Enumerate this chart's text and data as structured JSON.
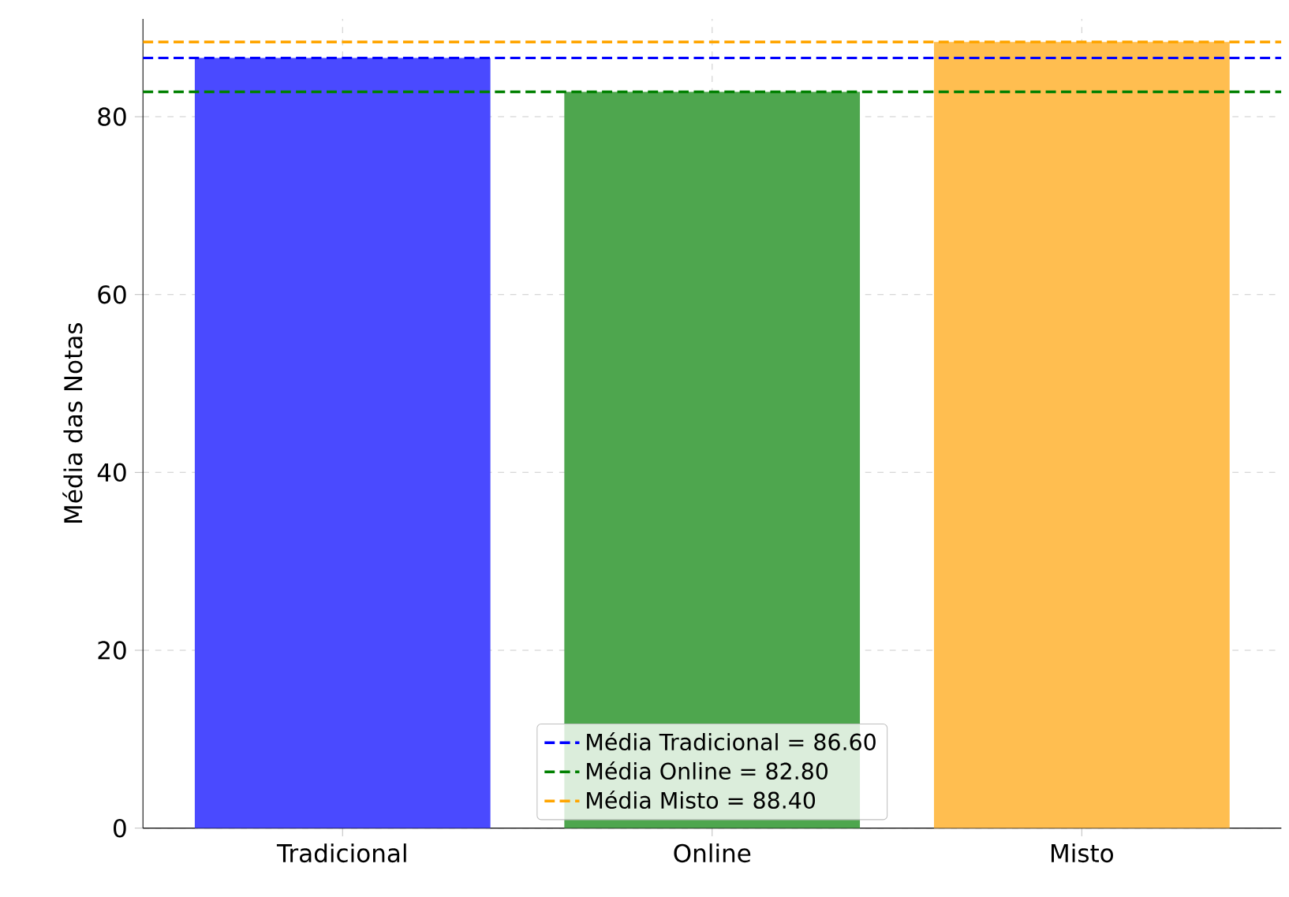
{
  "chart_data": {
    "type": "bar",
    "ylabel": "Média das Notas",
    "categories": [
      "Tradicional",
      "Online",
      "Misto"
    ],
    "values": [
      86.6,
      82.8,
      88.4
    ],
    "colors": [
      "#4a4aff",
      "#4ea64e",
      "#ffbe50"
    ],
    "ylim": [
      0,
      91
    ],
    "yticks": [
      0,
      20,
      40,
      60,
      80
    ],
    "grid": true,
    "legend": "bottom",
    "ref_lines": [
      {
        "axis": "y",
        "value": 86.6,
        "label": "Média Tradicional = 86.60",
        "color": "#0000ff",
        "line_style": "dashed"
      },
      {
        "axis": "y",
        "value": 82.8,
        "label": "Média Online = 82.80",
        "color": "#008000",
        "line_style": "dashed"
      },
      {
        "axis": "y",
        "value": 88.4,
        "label": "Média Misto = 88.40",
        "color": "#ffa500",
        "line_style": "dashed"
      }
    ]
  }
}
